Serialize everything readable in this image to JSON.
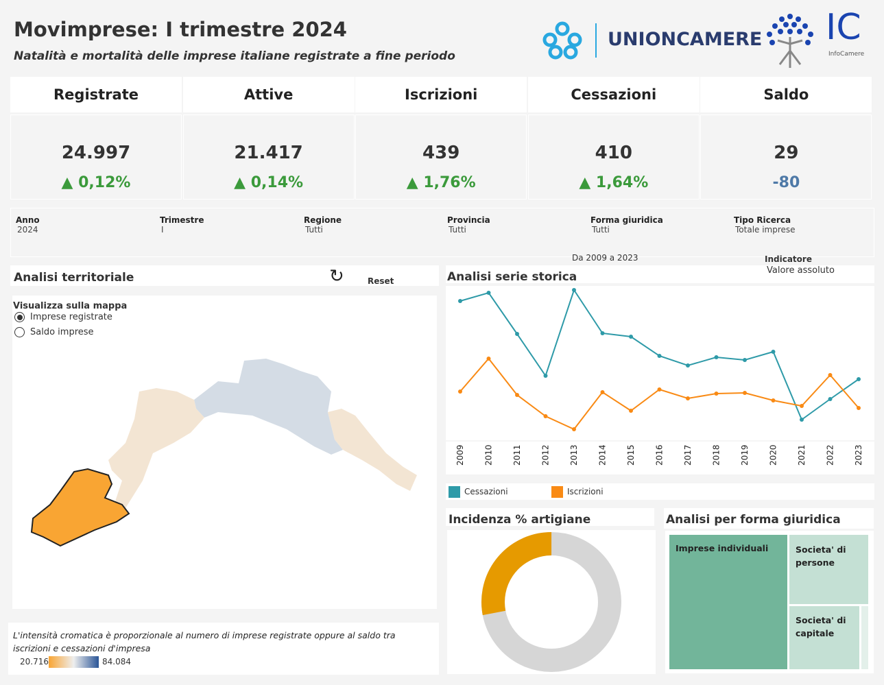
{
  "header": {
    "title": "Movimprese: I trimestre 2024",
    "subtitle": "Natalità e mortalità delle imprese italiane registrate a fine periodo",
    "logo1": "UNIONCAMERE",
    "logo2": "IC",
    "logo2_sub": "InfoCamere"
  },
  "kpis": [
    {
      "label": "Registrate",
      "value": "24.997",
      "delta": "▲ 0,12%"
    },
    {
      "label": "Attive",
      "value": "21.417",
      "delta": "▲ 0,14%"
    },
    {
      "label": "Iscrizioni",
      "value": "439",
      "delta": "▲ 1,76%"
    },
    {
      "label": "Cessazioni",
      "value": "410",
      "delta": "▲ 1,64%"
    },
    {
      "label": "Saldo",
      "value": "29",
      "delta": "-80"
    }
  ],
  "filters": [
    {
      "label": "Anno",
      "value": "2024"
    },
    {
      "label": "Trimestre",
      "value": "I"
    },
    {
      "label": "Regione",
      "value": "Tutti"
    },
    {
      "label": "Provincia",
      "value": "Tutti"
    },
    {
      "label": "Forma giuridica",
      "value": "Tutti"
    },
    {
      "label": "Tipo Ricerca",
      "value": "Totale imprese"
    }
  ],
  "range_label": "Da 2009 a 2023",
  "indicatore": {
    "label": "Indicatore",
    "value": "Valore assoluto"
  },
  "territoriale": {
    "title": "Analisi territoriale",
    "reset": "Reset",
    "map_label": "Visualizza sulla mappa",
    "options": [
      "Imprese registrate",
      "Saldo imprese"
    ],
    "selected": 0,
    "note": "L'intensità cromatica è proporzionale al numero di imprese registrate oppure al saldo tra iscrizioni e cessazioni d'impresa",
    "legend_min": "20.716",
    "legend_max": "84.084"
  },
  "chart_data": {
    "type": "line",
    "title": "Analisi serie storica",
    "xlabel": "",
    "ylabel": "",
    "categories": [
      "2009",
      "2010",
      "2011",
      "2012",
      "2013",
      "2014",
      "2015",
      "2016",
      "2017",
      "2018",
      "2019",
      "2020",
      "2021",
      "2022",
      "2023"
    ],
    "series": [
      {
        "name": "Cessazioni",
        "color": "#2e9aa8",
        "values": [
          204,
          216,
          156,
          95,
          220,
          157,
          152,
          124,
          110,
          122,
          118,
          130,
          31,
          61,
          90
        ]
      },
      {
        "name": "Iscrizioni",
        "color": "#f98a14",
        "values": [
          72,
          120,
          67,
          36,
          17,
          71,
          44,
          75,
          62,
          69,
          70,
          59,
          51,
          96,
          48
        ]
      }
    ],
    "note": "relative index, no y-axis shown"
  },
  "artigiane": {
    "title": "Incidenza % artigiane",
    "share": 0.28,
    "color": "#e69a00",
    "rest_color": "#d6d6d6"
  },
  "forma": {
    "title": "Analisi per forma giuridica",
    "items": [
      "Imprese individuali",
      "Societa' di persone",
      "Societa' di capitale"
    ]
  }
}
